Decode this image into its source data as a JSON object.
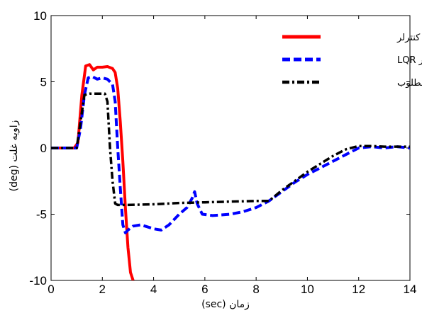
{
  "chart_data": {
    "type": "line",
    "xlabel": "زمان (sec)",
    "ylabel": "زاویه غلت (deg)",
    "xlim": [
      0,
      14
    ],
    "ylim": [
      -10,
      10
    ],
    "xticks": [
      "0",
      "2",
      "4",
      "6",
      "8",
      "10",
      "12",
      "14"
    ],
    "yticks": [
      "10",
      "5",
      "0",
      "-5",
      "-10"
    ],
    "grid": false,
    "legend_position": "top-right",
    "series": [
      {
        "name": "بدون کنترلر",
        "color": "#ff0000",
        "style": "solid",
        "points": [
          [
            0,
            0
          ],
          [
            0.9,
            0
          ],
          [
            1.05,
            0.4
          ],
          [
            1.2,
            4.0
          ],
          [
            1.35,
            6.2
          ],
          [
            1.5,
            6.3
          ],
          [
            1.65,
            5.9
          ],
          [
            1.8,
            6.1
          ],
          [
            2.0,
            6.1
          ],
          [
            2.2,
            6.15
          ],
          [
            2.4,
            6.0
          ],
          [
            2.5,
            5.7
          ],
          [
            2.6,
            4.5
          ],
          [
            2.7,
            2.0
          ],
          [
            2.8,
            -1.0
          ],
          [
            2.9,
            -4.5
          ],
          [
            3.0,
            -7.5
          ],
          [
            3.1,
            -9.4
          ],
          [
            3.2,
            -10
          ]
        ]
      },
      {
        "name": "کنترلر LQR",
        "color": "#0000ff",
        "style": "dashed",
        "points": [
          [
            0,
            0
          ],
          [
            1.0,
            0
          ],
          [
            1.15,
            1.5
          ],
          [
            1.3,
            4.0
          ],
          [
            1.45,
            5.3
          ],
          [
            1.6,
            5.4
          ],
          [
            1.8,
            5.2
          ],
          [
            2.0,
            5.3
          ],
          [
            2.2,
            5.2
          ],
          [
            2.4,
            4.8
          ],
          [
            2.5,
            3.5
          ],
          [
            2.6,
            0
          ],
          [
            2.7,
            -3.0
          ],
          [
            2.8,
            -5.8
          ],
          [
            2.9,
            -6.4
          ],
          [
            3.0,
            -6.2
          ],
          [
            3.2,
            -5.9
          ],
          [
            3.5,
            -5.8
          ],
          [
            4.0,
            -6.1
          ],
          [
            4.3,
            -6.2
          ],
          [
            4.6,
            -5.8
          ],
          [
            5.0,
            -5.0
          ],
          [
            5.3,
            -4.5
          ],
          [
            5.5,
            -3.8
          ],
          [
            5.6,
            -3.3
          ],
          [
            5.7,
            -4.2
          ],
          [
            5.9,
            -5.0
          ],
          [
            6.3,
            -5.1
          ],
          [
            7.0,
            -5.0
          ],
          [
            7.5,
            -4.8
          ],
          [
            8.0,
            -4.5
          ],
          [
            8.5,
            -4.0
          ],
          [
            9.0,
            -3.3
          ],
          [
            9.5,
            -2.6
          ],
          [
            10,
            -2.0
          ],
          [
            10.5,
            -1.5
          ],
          [
            11,
            -1.0
          ],
          [
            11.5,
            -0.5
          ],
          [
            12,
            0
          ],
          [
            12.5,
            0.1
          ],
          [
            13,
            0
          ],
          [
            13.5,
            0.1
          ],
          [
            14,
            0
          ]
        ]
      },
      {
        "name": "مقدار مطلوب",
        "color": "#000000",
        "style": "dashdot",
        "points": [
          [
            0,
            0
          ],
          [
            1.0,
            0
          ],
          [
            1.15,
            2.0
          ],
          [
            1.3,
            4.0
          ],
          [
            1.5,
            4.1
          ],
          [
            1.8,
            4.1
          ],
          [
            2.1,
            4.1
          ],
          [
            2.2,
            3.5
          ],
          [
            2.3,
            0
          ],
          [
            2.4,
            -2.5
          ],
          [
            2.5,
            -4.2
          ],
          [
            2.6,
            -4.3
          ],
          [
            3.0,
            -4.3
          ],
          [
            4.0,
            -4.25
          ],
          [
            5.0,
            -4.15
          ],
          [
            6.0,
            -4.1
          ],
          [
            7.0,
            -4.05
          ],
          [
            8.0,
            -4.0
          ],
          [
            8.5,
            -4.0
          ],
          [
            9.0,
            -3.2
          ],
          [
            9.5,
            -2.5
          ],
          [
            10,
            -1.8
          ],
          [
            10.5,
            -1.2
          ],
          [
            11,
            -0.6
          ],
          [
            11.5,
            -0.1
          ],
          [
            12,
            0.15
          ],
          [
            12.5,
            0.15
          ],
          [
            13,
            0.1
          ],
          [
            13.5,
            0.1
          ],
          [
            14,
            0.1
          ]
        ]
      }
    ]
  }
}
